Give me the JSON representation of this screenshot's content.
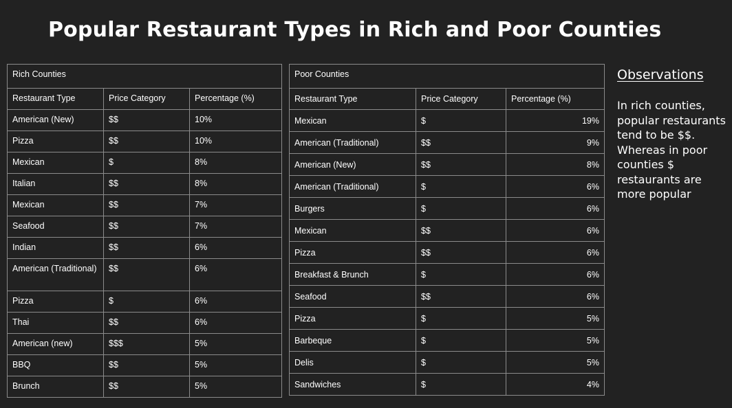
{
  "title": "Popular Restaurant Types in Rich and Poor Counties",
  "rich": {
    "caption": "Rich Counties",
    "headers": [
      "Restaurant Type",
      "Price Category",
      "Percentage (%)"
    ],
    "rows": [
      [
        "American (New)",
        "$$",
        "10%"
      ],
      [
        "Pizza",
        "$$",
        "10%"
      ],
      [
        "Mexican",
        "$",
        "8%"
      ],
      [
        "Italian",
        "$$",
        "8%"
      ],
      [
        "Mexican",
        "$$",
        "7%"
      ],
      [
        "Seafood",
        "$$",
        "7%"
      ],
      [
        "Indian",
        "$$",
        "6%"
      ],
      [
        "American (Traditional)",
        "$$",
        "6%"
      ],
      [
        "Pizza",
        "$",
        "6%"
      ],
      [
        "Thai",
        "$$",
        "6%"
      ],
      [
        "American (new)",
        "$$$",
        "5%"
      ],
      [
        "BBQ",
        "$$",
        "5%"
      ],
      [
        "Brunch",
        "$$",
        "5%"
      ]
    ]
  },
  "poor": {
    "caption": "Poor Counties",
    "headers": [
      "Restaurant Type",
      "Price Category",
      "Percentage (%)"
    ],
    "rows": [
      [
        "Mexican",
        "$",
        "19%"
      ],
      [
        "American (Traditional)",
        "$$",
        "9%"
      ],
      [
        "American (New)",
        "$$",
        "8%"
      ],
      [
        "American (Traditional)",
        "$",
        "6%"
      ],
      [
        "Burgers",
        "$",
        "6%"
      ],
      [
        "Mexican",
        "$$",
        "6%"
      ],
      [
        "Pizza",
        "$$",
        "6%"
      ],
      [
        "Breakfast & Brunch",
        "$",
        "6%"
      ],
      [
        "Seafood",
        "$$",
        "6%"
      ],
      [
        "Pizza",
        "$",
        "5%"
      ],
      [
        "Barbeque",
        "$",
        "5%"
      ],
      [
        "Delis",
        "$",
        "5%"
      ],
      [
        "Sandwiches",
        "$",
        "4%"
      ]
    ]
  },
  "observations": {
    "heading": "Observations",
    "text": "In rich counties, popular restaurants tend to be $$. Whereas in poor counties $ restaurants are more popular"
  }
}
